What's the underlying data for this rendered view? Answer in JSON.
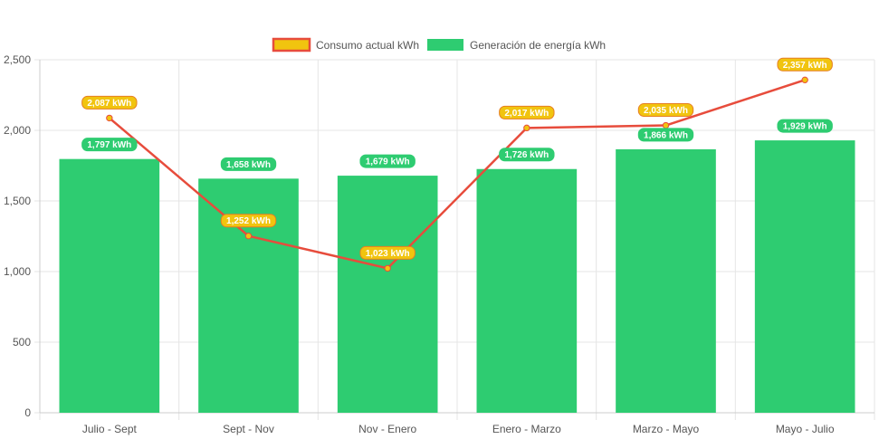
{
  "chart_data": {
    "type": "bar",
    "categories": [
      "Julio - Sept",
      "Sept - Nov",
      "Nov - Enero",
      "Enero - Marzo",
      "Marzo - Mayo",
      "Mayo - Julio"
    ],
    "series": [
      {
        "name": "Generación de energía kWh",
        "type": "bar",
        "values": [
          1797,
          1658,
          1679,
          1726,
          1866,
          1929
        ],
        "labels": [
          "1,797 kWh",
          "1,658 kWh",
          "1,679 kWh",
          "1,726 kWh",
          "1,866 kWh",
          "1,929 kWh"
        ],
        "color": "#2ecc71"
      },
      {
        "name": "Consumo actual kWh",
        "type": "line",
        "values": [
          2087,
          1252,
          1023,
          2017,
          2035,
          2357
        ],
        "labels": [
          "2,087 kWh",
          "1,252 kWh",
          "1,023 kWh",
          "2,017 kWh",
          "2,035 kWh",
          "2,357 kWh"
        ],
        "color": "#e74c3c",
        "fill": "#f1c40f"
      }
    ],
    "yticks": [
      "0",
      "500",
      "1,000",
      "1,500",
      "2,000",
      "2,500"
    ],
    "ylim": [
      0,
      2500
    ],
    "grid": true,
    "legend_position": "top-center"
  }
}
